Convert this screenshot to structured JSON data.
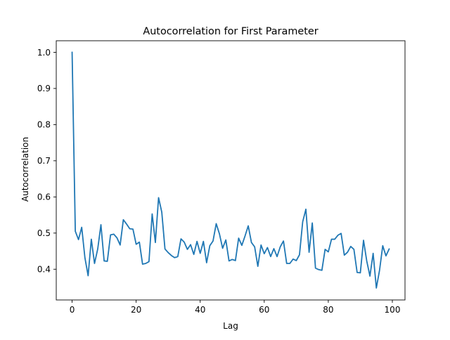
{
  "chart_data": {
    "type": "line",
    "title": "Autocorrelation for First Parameter",
    "xlabel": "Lag",
    "ylabel": "Autocorrelation",
    "xlim": [
      -4.95,
      103.95
    ],
    "ylim": [
      0.315,
      1.032
    ],
    "xticks": [
      0,
      20,
      40,
      60,
      80,
      100
    ],
    "xtick_labels": [
      "0",
      "20",
      "40",
      "60",
      "80",
      "100"
    ],
    "yticks": [
      0.4,
      0.5,
      0.6,
      0.7,
      0.8,
      0.9,
      1.0
    ],
    "ytick_labels": [
      "0.4",
      "0.5",
      "0.6",
      "0.7",
      "0.8",
      "0.9",
      "1.0"
    ],
    "grid": false,
    "series": [
      {
        "color": "#1f77b4",
        "x": [
          0,
          1,
          2,
          3,
          4,
          5,
          6,
          7,
          8,
          9,
          10,
          11,
          12,
          13,
          14,
          15,
          16,
          17,
          18,
          19,
          20,
          21,
          22,
          23,
          24,
          25,
          26,
          27,
          28,
          29,
          30,
          31,
          32,
          33,
          34,
          35,
          36,
          37,
          38,
          39,
          40,
          41,
          42,
          43,
          44,
          45,
          46,
          47,
          48,
          49,
          50,
          51,
          52,
          53,
          54,
          55,
          56,
          57,
          58,
          59,
          60,
          61,
          62,
          63,
          64,
          65,
          66,
          67,
          68,
          69,
          70,
          71,
          72,
          73,
          74,
          75,
          76,
          77,
          78,
          79,
          80,
          81,
          82,
          83,
          84,
          85,
          86,
          87,
          88,
          89,
          90,
          91,
          92,
          93,
          94,
          95,
          96,
          97,
          98,
          99
        ],
        "values": [
          1.0,
          0.505,
          0.482,
          0.516,
          0.432,
          0.382,
          0.483,
          0.416,
          0.456,
          0.523,
          0.423,
          0.422,
          0.495,
          0.497,
          0.487,
          0.467,
          0.537,
          0.525,
          0.512,
          0.511,
          0.469,
          0.475,
          0.414,
          0.416,
          0.421,
          0.553,
          0.474,
          0.598,
          0.558,
          0.456,
          0.446,
          0.438,
          0.432,
          0.435,
          0.484,
          0.475,
          0.455,
          0.468,
          0.441,
          0.477,
          0.444,
          0.477,
          0.418,
          0.465,
          0.478,
          0.526,
          0.498,
          0.458,
          0.481,
          0.423,
          0.427,
          0.424,
          0.486,
          0.466,
          0.492,
          0.52,
          0.474,
          0.462,
          0.408,
          0.467,
          0.443,
          0.46,
          0.435,
          0.457,
          0.435,
          0.462,
          0.478,
          0.416,
          0.416,
          0.428,
          0.424,
          0.44,
          0.531,
          0.566,
          0.447,
          0.528,
          0.403,
          0.399,
          0.397,
          0.455,
          0.448,
          0.483,
          0.483,
          0.494,
          0.499,
          0.439,
          0.447,
          0.463,
          0.455,
          0.391,
          0.39,
          0.48,
          0.423,
          0.381,
          0.444,
          0.348,
          0.397,
          0.465,
          0.437,
          0.456
        ]
      }
    ]
  }
}
